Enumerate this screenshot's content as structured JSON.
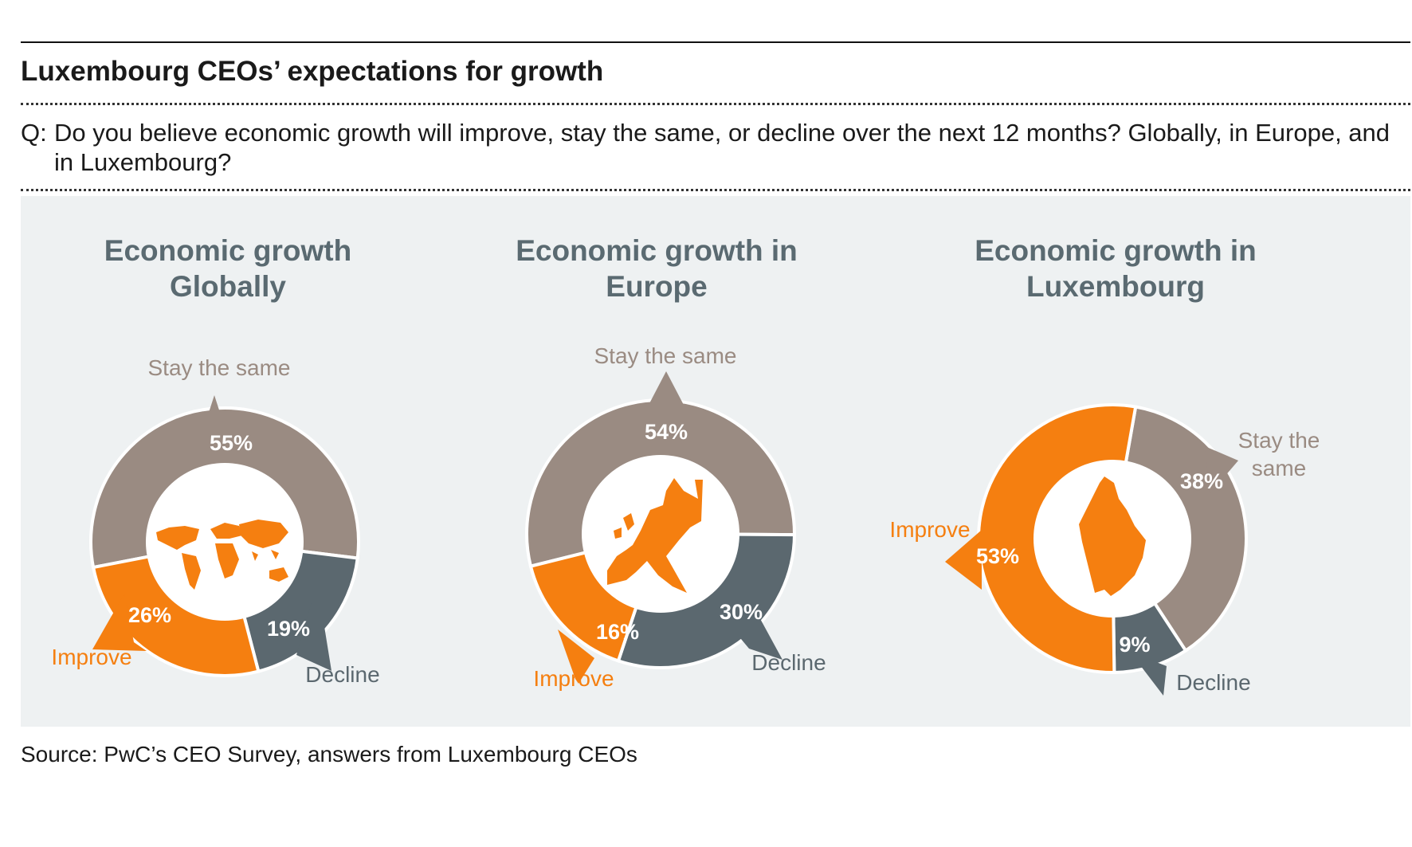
{
  "title": "Luxembourg CEOs’ expectations for growth",
  "question": {
    "prefix": "Q:",
    "text": "Do you believe economic growth will improve, stay the same, or decline over the next 12 months? Globally, in Europe, and in Luxembourg?"
  },
  "source": "Source: PwC’s CEO Survey, answers from Luxembourg CEOs",
  "colors": {
    "stay": "#9a8b82",
    "improve": "#f57f10",
    "decline": "#5b686f",
    "title": "#5a6a71",
    "panel": "#eef1f2"
  },
  "chart_data": [
    {
      "type": "pie",
      "title_lines": [
        "Economic growth",
        "Globally"
      ],
      "center_icon": "world-map-icon",
      "segments": [
        {
          "key": "stay",
          "label": "Stay the same",
          "value": 55,
          "value_label": "55%"
        },
        {
          "key": "decline",
          "label": "Decline",
          "value": 19,
          "value_label": "19%"
        },
        {
          "key": "improve",
          "label": "Improve",
          "value": 26,
          "value_label": "26%"
        }
      ]
    },
    {
      "type": "pie",
      "title_lines": [
        "Economic growth in",
        "Europe"
      ],
      "center_icon": "europe-map-icon",
      "segments": [
        {
          "key": "stay",
          "label": "Stay the same",
          "value": 54,
          "value_label": "54%"
        },
        {
          "key": "decline",
          "label": "Decline",
          "value": 30,
          "value_label": "30%"
        },
        {
          "key": "improve",
          "label": "Improve",
          "value": 16,
          "value_label": "16%"
        }
      ]
    },
    {
      "type": "pie",
      "title_lines": [
        "Economic growth in",
        "Luxembourg"
      ],
      "center_icon": "luxembourg-map-icon",
      "segments": [
        {
          "key": "stay",
          "label_lines": [
            "Stay the",
            "same"
          ],
          "value": 38,
          "value_label": "38%"
        },
        {
          "key": "decline",
          "label": "Decline",
          "value": 9,
          "value_label": "9%"
        },
        {
          "key": "improve",
          "label": "Improve",
          "value": 53,
          "value_label": "53%"
        }
      ]
    }
  ]
}
